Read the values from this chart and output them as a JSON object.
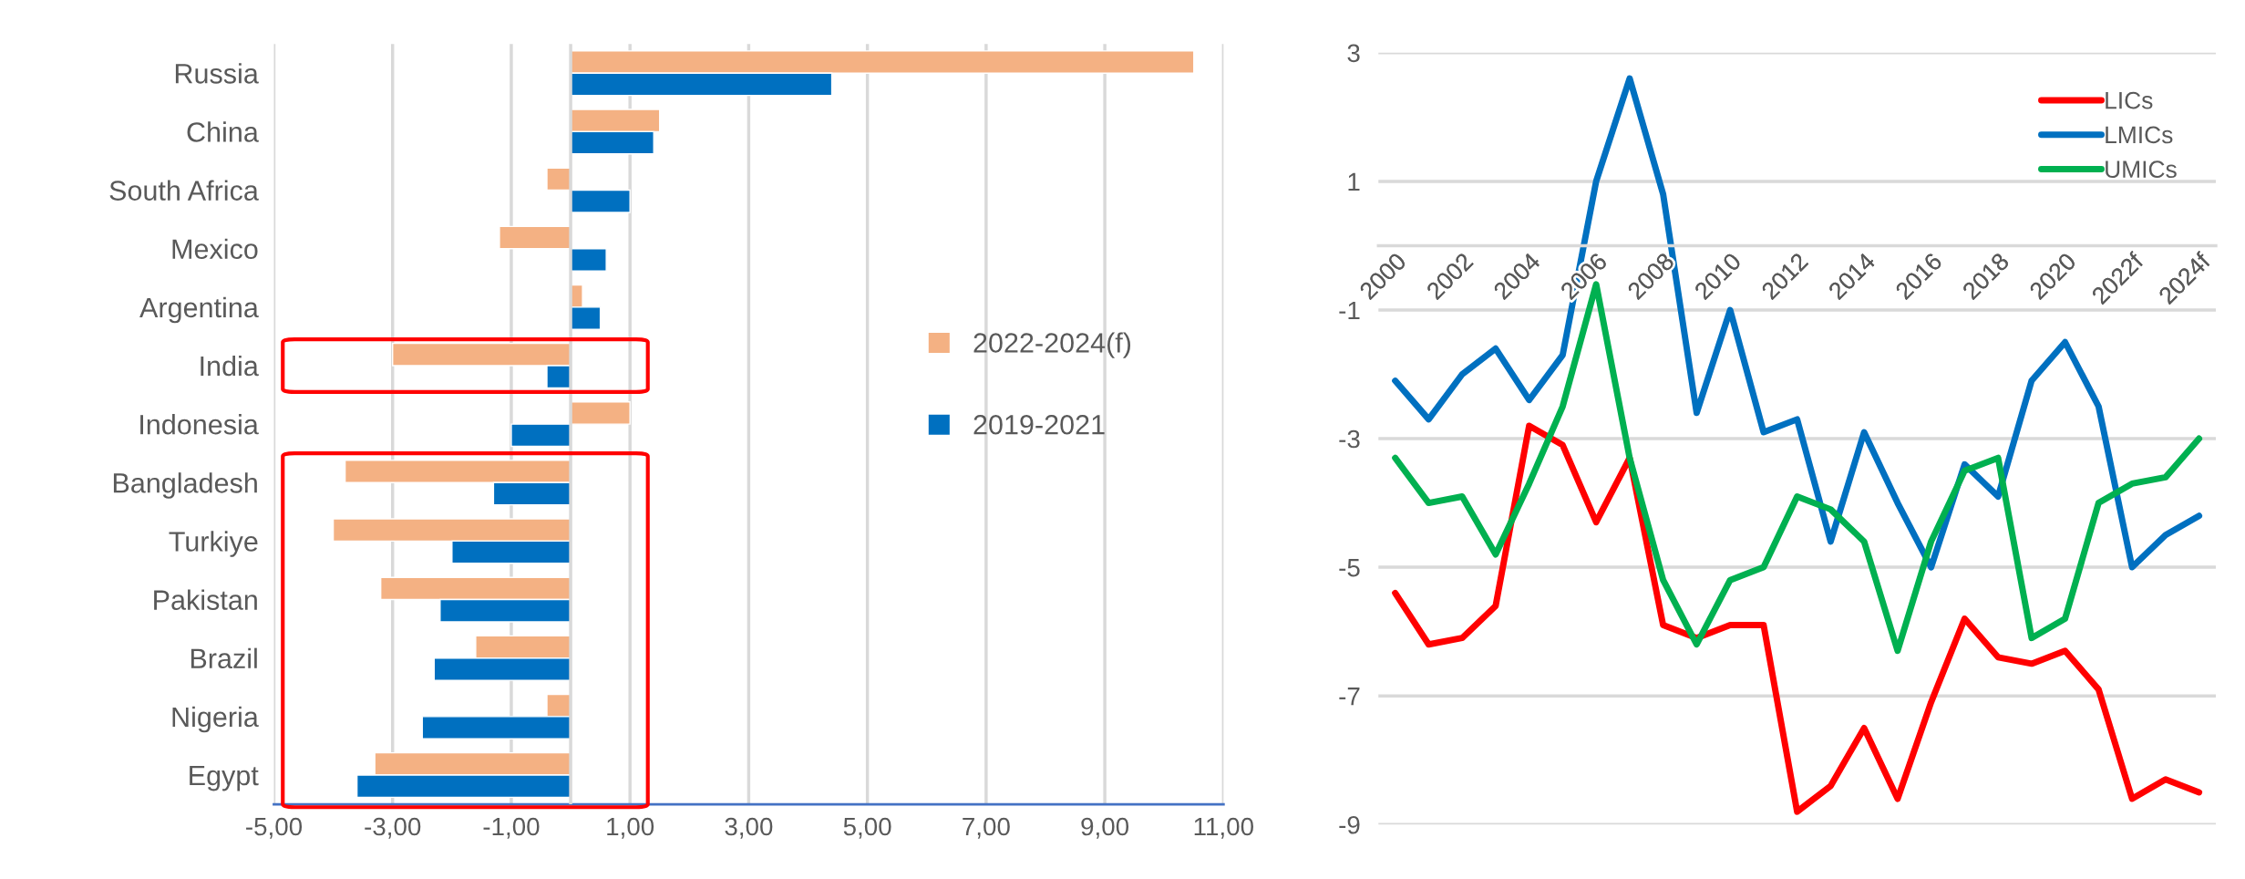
{
  "chart_data": [
    {
      "type": "bar",
      "orientation": "horizontal",
      "categories": [
        "Russia",
        "China",
        "South Africa",
        "Mexico",
        "Argentina",
        "India",
        "Indonesia",
        "Bangladesh",
        "Turkiye",
        "Pakistan",
        "Brazil",
        "Nigeria",
        "Egypt"
      ],
      "series": [
        {
          "name": "2022-2024(f)",
          "color": "#f4b183",
          "values": [
            10.5,
            1.5,
            -0.4,
            -1.2,
            0.2,
            -3.0,
            1.0,
            -3.8,
            -4.0,
            -3.2,
            -1.6,
            -0.4,
            -3.3
          ]
        },
        {
          "name": "2019-2021",
          "color": "#0070c0",
          "values": [
            4.4,
            1.4,
            1.0,
            0.6,
            0.5,
            -0.4,
            -1.0,
            -1.3,
            -2.0,
            -2.2,
            -2.3,
            -2.5,
            -3.6
          ]
        }
      ],
      "xlim": [
        -5,
        11
      ],
      "xticks": [
        {
          "value": -5,
          "label": "-5,00"
        },
        {
          "value": -3,
          "label": "-3,00"
        },
        {
          "value": -1,
          "label": "-1,00"
        },
        {
          "value": 1,
          "label": "1,00"
        },
        {
          "value": 3,
          "label": "3,00"
        },
        {
          "value": 5,
          "label": "5,00"
        },
        {
          "value": 7,
          "label": "7,00"
        },
        {
          "value": 9,
          "label": "9,00"
        },
        {
          "value": 11,
          "label": "11,00"
        }
      ],
      "grid": "x",
      "legend": "right"
    },
    {
      "type": "line",
      "categories": [
        "2000",
        null,
        "2002",
        null,
        "2004",
        null,
        "2006",
        null,
        "2008",
        null,
        "2010",
        null,
        "2012",
        null,
        "2014",
        null,
        "2016",
        null,
        "2018",
        null,
        "2020",
        null,
        "2022f",
        null,
        "2024f"
      ],
      "series": [
        {
          "name": "LICs",
          "color": "#ff0000",
          "values": [
            -5.4,
            -6.2,
            -6.1,
            -5.6,
            -2.8,
            -3.1,
            -4.3,
            -3.3,
            -5.9,
            -6.1,
            -5.9,
            -5.9,
            -8.8,
            -8.4,
            -7.5,
            -8.6,
            -7.1,
            -5.8,
            -6.4,
            -6.5,
            -6.3,
            -6.9,
            -8.6,
            -8.3,
            -8.5
          ]
        },
        {
          "name": "LMICs",
          "color": "#0070c0",
          "values": [
            -2.1,
            -2.7,
            -2.0,
            -1.6,
            -2.4,
            -1.7,
            1.0,
            2.6,
            0.8,
            -2.6,
            -1.0,
            -2.9,
            -2.7,
            -4.6,
            -2.9,
            -4.0,
            -5.0,
            -3.4,
            -3.9,
            -2.1,
            -1.5,
            -2.5,
            -5.0,
            -4.5,
            -4.2
          ]
        },
        {
          "name": "UMICs",
          "color": "#00b050",
          "values": [
            -3.3,
            -4.0,
            -3.9,
            -4.8,
            -3.7,
            -2.5,
            -0.6,
            -3.3,
            -5.2,
            -6.2,
            -5.2,
            -5.0,
            -3.9,
            -4.1,
            -4.6,
            -6.3,
            -4.6,
            -3.5,
            -3.3,
            -6.1,
            -5.8,
            -4.0,
            -3.7,
            -3.6,
            -3.0
          ]
        }
      ],
      "ylim": [
        -9,
        3
      ],
      "yticks": [
        3,
        1,
        -1,
        -3,
        -5,
        -7,
        -9
      ],
      "grid": "y",
      "legend": "top right",
      "line_style": "solid",
      "marker": "none"
    }
  ]
}
